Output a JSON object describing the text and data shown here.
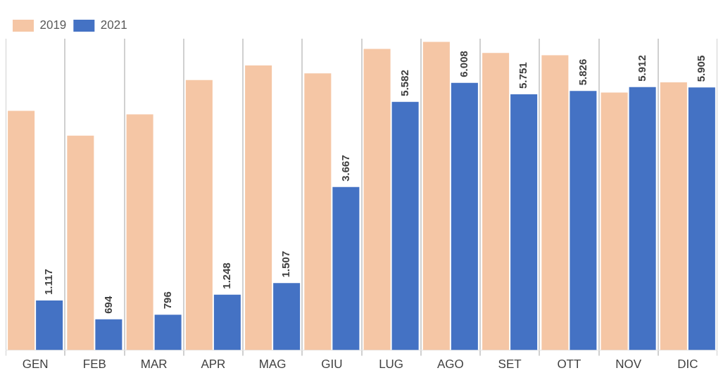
{
  "chart_data": {
    "type": "bar",
    "categories": [
      "GEN",
      "FEB",
      "MAR",
      "APR",
      "MAG",
      "GIU",
      "LUG",
      "AGO",
      "SET",
      "OTT",
      "NOV",
      "DIC"
    ],
    "series": [
      {
        "name": "2019",
        "color": "#f5c6a5",
        "values": [
          5380,
          4820,
          5300,
          6070,
          6400,
          6220,
          6770,
          6930,
          6680,
          6630,
          5790,
          6020
        ]
      },
      {
        "name": "2021",
        "color": "#4472c4",
        "values": [
          1117,
          694,
          796,
          1248,
          1507,
          3667,
          5582,
          6008,
          5751,
          5826,
          5912,
          5905
        ],
        "value_labels": [
          "1.117",
          "694",
          "796",
          "1.248",
          "1.507",
          "3.667",
          "5.582",
          "6.008",
          "5.751",
          "5.826",
          "5.912",
          "5.905"
        ]
      }
    ],
    "grid": "x",
    "legend": "top left"
  }
}
